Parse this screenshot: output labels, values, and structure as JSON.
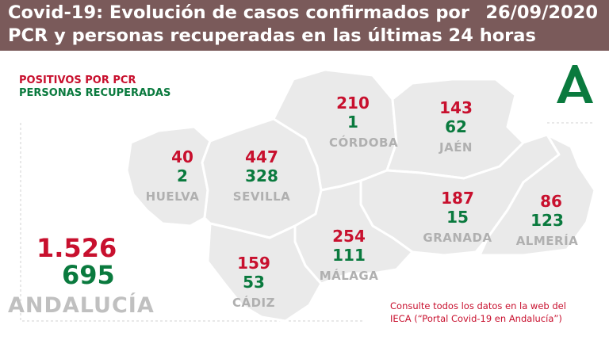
{
  "header": {
    "title_line1": "Covid-19: Evolución de casos confirmados por",
    "title_line2": "PCR y personas recuperadas en las últimas 24 horas",
    "date": "26/09/2020"
  },
  "legend": {
    "positives_label": "POSITIVOS POR PCR",
    "recovered_label": "PERSONAS RECUPERADAS"
  },
  "provinces": [
    {
      "name": "HUELVA",
      "positives": "40",
      "recovered": "2"
    },
    {
      "name": "SEVILLA",
      "positives": "447",
      "recovered": "328"
    },
    {
      "name": "CÓRDOBA",
      "positives": "210",
      "recovered": "1"
    },
    {
      "name": "JAÉN",
      "positives": "143",
      "recovered": "62"
    },
    {
      "name": "GRANADA",
      "positives": "187",
      "recovered": "15"
    },
    {
      "name": "ALMERÍA",
      "positives": "86",
      "recovered": "123"
    },
    {
      "name": "MÁLAGA",
      "positives": "254",
      "recovered": "111"
    },
    {
      "name": "CÁDIZ",
      "positives": "159",
      "recovered": "53"
    }
  ],
  "total": {
    "name": "ANDALUCÍA",
    "positives": "1.526",
    "recovered": "695"
  },
  "note": {
    "line1": "Consulte todos los datos en la web del",
    "line2": "IECA (“Portal Covid-19 en Andalucía”)"
  },
  "colors": {
    "header": "#7a5a5a",
    "positive": "#c8102e",
    "recovered": "#0a7a3e",
    "map_fill": "#eaeaea",
    "map_border": "#ffffff",
    "logo": "#0a7a3e"
  },
  "icons": {
    "logo": "junta-de-andalucia-logo-icon"
  }
}
